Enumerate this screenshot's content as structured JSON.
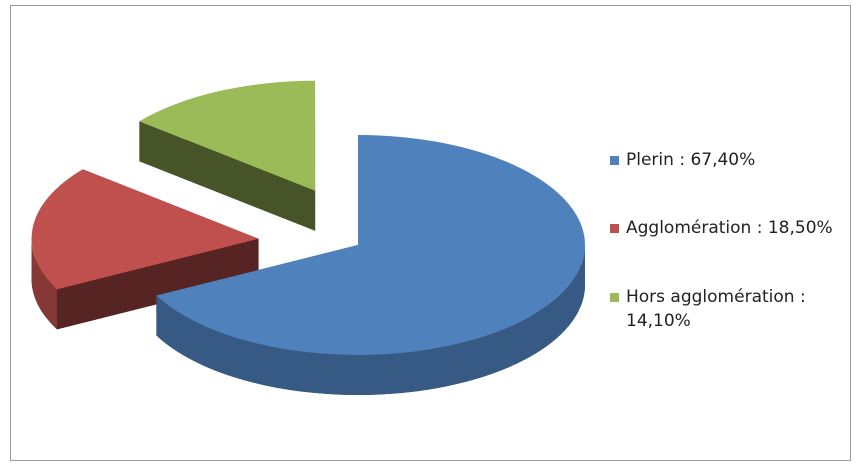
{
  "chart_data": {
    "type": "pie3d",
    "categories": [
      "Plerin : 67,40%",
      "Agglomération : 18,50%",
      "Hors agglomération : 14,10%"
    ],
    "values": [
      67.4,
      18.5,
      14.1
    ],
    "colors": [
      "#4f81bd",
      "#c0504d",
      "#9bbb59"
    ],
    "exploded": [
      false,
      true,
      true
    ],
    "legend": "right"
  }
}
